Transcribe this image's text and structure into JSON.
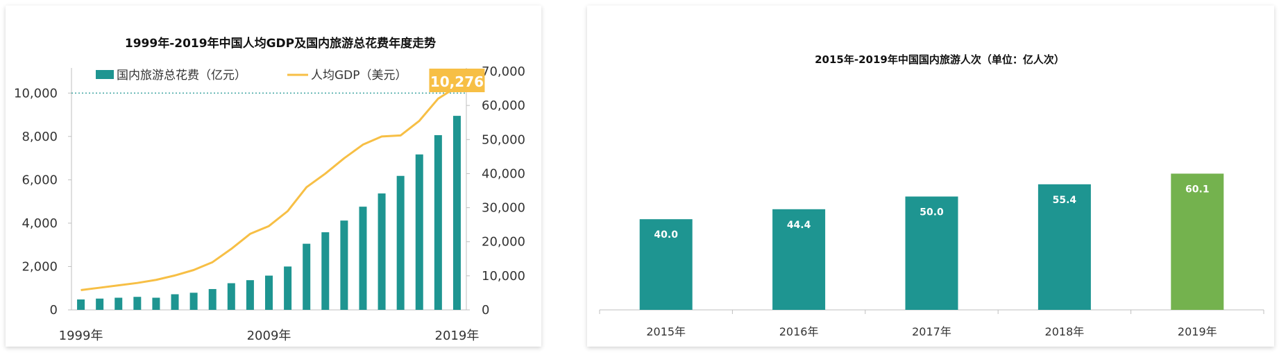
{
  "chart_data": [
    {
      "type": "bar+line",
      "title": "1999年-2019年中国人均GDP及国内旅游总花费年度走势",
      "years": [
        1999,
        2000,
        2001,
        2002,
        2003,
        2004,
        2005,
        2006,
        2007,
        2008,
        2009,
        2010,
        2011,
        2012,
        2013,
        2014,
        2015,
        2016,
        2017,
        2018,
        2019
      ],
      "x_tick_labels": [
        "1999年",
        "2009年",
        "2019年"
      ],
      "series": [
        {
          "name": "国内旅游总花费（亿元）",
          "type": "bar",
          "axis": "left",
          "values": [
            480,
            520,
            560,
            600,
            560,
            720,
            790,
            960,
            1230,
            1370,
            1580,
            2000,
            3050,
            3580,
            4120,
            4760,
            5370,
            6180,
            7170,
            8060,
            8950
          ]
        },
        {
          "name": "人均GDP（美元）",
          "type": "line",
          "axis": "right",
          "values": [
            5800,
            6500,
            7200,
            7900,
            8800,
            10100,
            11700,
            14000,
            17900,
            22300,
            24600,
            29000,
            36000,
            40000,
            44500,
            48500,
            50900,
            51200,
            55500,
            62000,
            65500
          ]
        }
      ],
      "left_axis": {
        "ylim": [
          0,
          11000
        ],
        "ticks": [
          0,
          2000,
          4000,
          6000,
          8000,
          10000
        ],
        "tick_labels": [
          "0",
          "2,000",
          "4,000",
          "6,000",
          "8,000",
          "10,000"
        ]
      },
      "right_axis": {
        "ylim": [
          0,
          70000
        ],
        "ticks": [
          0,
          10000,
          20000,
          30000,
          40000,
          50000,
          60000,
          70000
        ],
        "tick_labels": [
          "0",
          "10,000",
          "20,000",
          "30,000",
          "40,000",
          "50,000",
          "60,000",
          "70,000"
        ]
      },
      "annotation": {
        "text": "10,276",
        "year": 2019
      },
      "reference_line": {
        "axis": "left",
        "value": 10000,
        "style": "dotted"
      },
      "legend_position": "top",
      "grid": false,
      "colors": {
        "bars": "#1e9591",
        "line": "#f7bf45",
        "annotation_bg": "#f7bf45",
        "ref_line": "#1e9591"
      }
    },
    {
      "type": "bar",
      "title": "2015年-2019年中国国内旅游人次（单位：亿人次）",
      "categories": [
        "2015年",
        "2016年",
        "2017年",
        "2018年",
        "2019年"
      ],
      "values": [
        40.0,
        44.4,
        50.0,
        55.4,
        60.1
      ],
      "value_labels": [
        "40.0",
        "44.4",
        "50.0",
        "55.4",
        "60.1"
      ],
      "ylim": [
        0,
        65
      ],
      "grid": false,
      "colors": {
        "bars": "#1e9591",
        "highlight": "#74b24e",
        "axis": "#bfbfbf"
      }
    }
  ]
}
